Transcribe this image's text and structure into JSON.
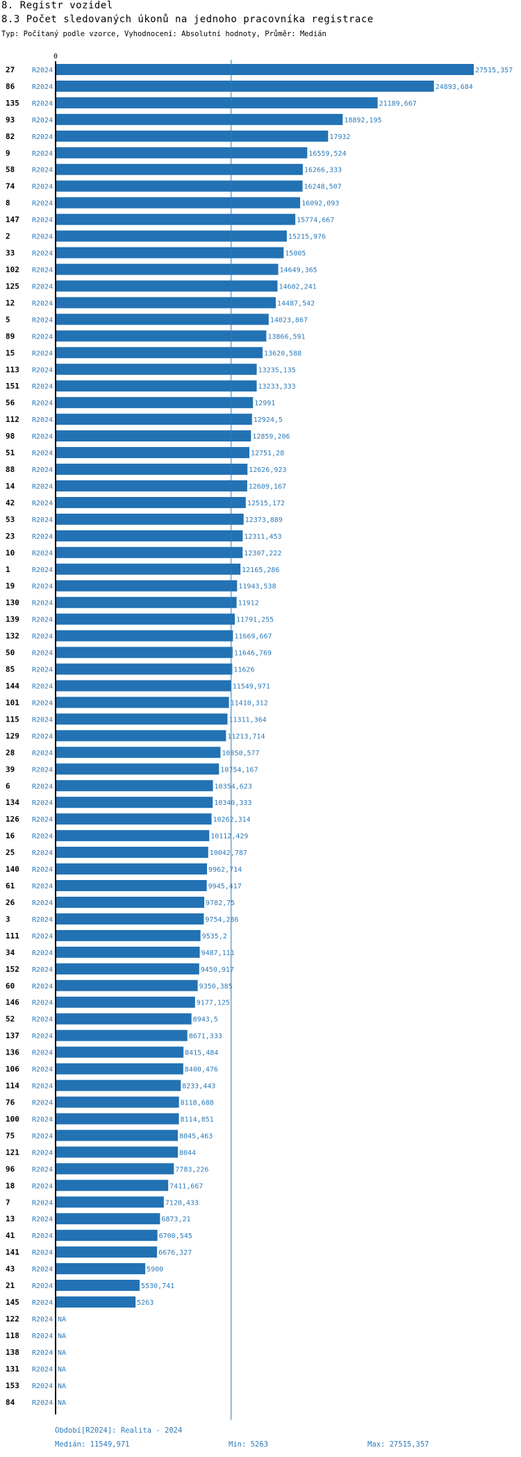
{
  "header": {
    "section": "8. Registr vozidel",
    "title": "8.3 Počet sledovaných úkonů na jednoho pracovníka registrace",
    "subtitle": "Typ: Počítaný podle vzorce, Vyhodnocení: Absolutní hodnoty, Průměr: Medián"
  },
  "footer": {
    "period": "Období[R2024]: Realita - 2024",
    "median": "Medián: 11549,971",
    "min": "Min: 5263",
    "max": "Max: 27515,357"
  },
  "colors": {
    "bar": "#2272b4",
    "label": "#2d7ab8",
    "axis": "#000000",
    "median_line": "#2d7ab8"
  },
  "chart_data": {
    "type": "bar",
    "orientation": "horizontal",
    "xlim": [
      0,
      27515.357
    ],
    "x_tick_labels": [
      "0"
    ],
    "median": 11549.971,
    "median_line": true,
    "series_label": "R2024",
    "rows": [
      {
        "id": "27",
        "series": "R2024",
        "value": 27515.357,
        "label": "27515,357"
      },
      {
        "id": "86",
        "series": "R2024",
        "value": 24893.684,
        "label": "24893,684"
      },
      {
        "id": "135",
        "series": "R2024",
        "value": 21189.667,
        "label": "21189,667"
      },
      {
        "id": "93",
        "series": "R2024",
        "value": 18892.195,
        "label": "18892,195"
      },
      {
        "id": "82",
        "series": "R2024",
        "value": 17932,
        "label": "17932"
      },
      {
        "id": "9",
        "series": "R2024",
        "value": 16559.524,
        "label": "16559,524"
      },
      {
        "id": "58",
        "series": "R2024",
        "value": 16266.333,
        "label": "16266,333"
      },
      {
        "id": "74",
        "series": "R2024",
        "value": 16248.507,
        "label": "16248,507"
      },
      {
        "id": "8",
        "series": "R2024",
        "value": 16092.093,
        "label": "16092,093"
      },
      {
        "id": "147",
        "series": "R2024",
        "value": 15774.667,
        "label": "15774,667"
      },
      {
        "id": "2",
        "series": "R2024",
        "value": 15215.976,
        "label": "15215,976"
      },
      {
        "id": "33",
        "series": "R2024",
        "value": 15005,
        "label": "15005"
      },
      {
        "id": "102",
        "series": "R2024",
        "value": 14649.365,
        "label": "14649,365"
      },
      {
        "id": "125",
        "series": "R2024",
        "value": 14602.241,
        "label": "14602,241"
      },
      {
        "id": "12",
        "series": "R2024",
        "value": 14487.542,
        "label": "14487,542"
      },
      {
        "id": "5",
        "series": "R2024",
        "value": 14023.867,
        "label": "14023,867"
      },
      {
        "id": "89",
        "series": "R2024",
        "value": 13866.591,
        "label": "13866,591"
      },
      {
        "id": "15",
        "series": "R2024",
        "value": 13620.588,
        "label": "13620,588"
      },
      {
        "id": "113",
        "series": "R2024",
        "value": 13235.135,
        "label": "13235,135"
      },
      {
        "id": "151",
        "series": "R2024",
        "value": 13233.333,
        "label": "13233,333"
      },
      {
        "id": "56",
        "series": "R2024",
        "value": 12991,
        "label": "12991"
      },
      {
        "id": "112",
        "series": "R2024",
        "value": 12924.5,
        "label": "12924,5"
      },
      {
        "id": "98",
        "series": "R2024",
        "value": 12859.206,
        "label": "12859,206"
      },
      {
        "id": "51",
        "series": "R2024",
        "value": 12751.28,
        "label": "12751,28"
      },
      {
        "id": "88",
        "series": "R2024",
        "value": 12626.923,
        "label": "12626,923"
      },
      {
        "id": "14",
        "series": "R2024",
        "value": 12609.167,
        "label": "12609,167"
      },
      {
        "id": "42",
        "series": "R2024",
        "value": 12515.172,
        "label": "12515,172"
      },
      {
        "id": "53",
        "series": "R2024",
        "value": 12373.889,
        "label": "12373,889"
      },
      {
        "id": "23",
        "series": "R2024",
        "value": 12311.453,
        "label": "12311,453"
      },
      {
        "id": "10",
        "series": "R2024",
        "value": 12307.222,
        "label": "12307,222"
      },
      {
        "id": "1",
        "series": "R2024",
        "value": 12165.286,
        "label": "12165,286"
      },
      {
        "id": "19",
        "series": "R2024",
        "value": 11943.538,
        "label": "11943,538"
      },
      {
        "id": "130",
        "series": "R2024",
        "value": 11912,
        "label": "11912"
      },
      {
        "id": "139",
        "series": "R2024",
        "value": 11791.255,
        "label": "11791,255"
      },
      {
        "id": "132",
        "series": "R2024",
        "value": 11669.667,
        "label": "11669,667"
      },
      {
        "id": "50",
        "series": "R2024",
        "value": 11646.769,
        "label": "11646,769"
      },
      {
        "id": "85",
        "series": "R2024",
        "value": 11626,
        "label": "11626"
      },
      {
        "id": "144",
        "series": "R2024",
        "value": 11549.971,
        "label": "11549,971"
      },
      {
        "id": "101",
        "series": "R2024",
        "value": 11410.312,
        "label": "11410,312"
      },
      {
        "id": "115",
        "series": "R2024",
        "value": 11311.364,
        "label": "11311,364"
      },
      {
        "id": "129",
        "series": "R2024",
        "value": 11213.714,
        "label": "11213,714"
      },
      {
        "id": "28",
        "series": "R2024",
        "value": 10850.577,
        "label": "10850,577"
      },
      {
        "id": "39",
        "series": "R2024",
        "value": 10754.167,
        "label": "10754,167"
      },
      {
        "id": "6",
        "series": "R2024",
        "value": 10354.623,
        "label": "10354,623"
      },
      {
        "id": "134",
        "series": "R2024",
        "value": 10340.333,
        "label": "10340,333"
      },
      {
        "id": "126",
        "series": "R2024",
        "value": 10262.314,
        "label": "10262,314"
      },
      {
        "id": "16",
        "series": "R2024",
        "value": 10112.429,
        "label": "10112,429"
      },
      {
        "id": "25",
        "series": "R2024",
        "value": 10042.787,
        "label": "10042,787"
      },
      {
        "id": "140",
        "series": "R2024",
        "value": 9962.714,
        "label": "9962,714"
      },
      {
        "id": "61",
        "series": "R2024",
        "value": 9945.417,
        "label": "9945,417"
      },
      {
        "id": "26",
        "series": "R2024",
        "value": 9782.75,
        "label": "9782,75"
      },
      {
        "id": "3",
        "series": "R2024",
        "value": 9754.286,
        "label": "9754,286"
      },
      {
        "id": "111",
        "series": "R2024",
        "value": 9535.2,
        "label": "9535,2"
      },
      {
        "id": "34",
        "series": "R2024",
        "value": 9487.111,
        "label": "9487,111"
      },
      {
        "id": "152",
        "series": "R2024",
        "value": 9450.917,
        "label": "9450,917"
      },
      {
        "id": "60",
        "series": "R2024",
        "value": 9350.385,
        "label": "9350,385"
      },
      {
        "id": "146",
        "series": "R2024",
        "value": 9177.125,
        "label": "9177,125"
      },
      {
        "id": "52",
        "series": "R2024",
        "value": 8943.5,
        "label": "8943,5"
      },
      {
        "id": "137",
        "series": "R2024",
        "value": 8671.333,
        "label": "8671,333"
      },
      {
        "id": "136",
        "series": "R2024",
        "value": 8415.484,
        "label": "8415,484"
      },
      {
        "id": "106",
        "series": "R2024",
        "value": 8400.476,
        "label": "8400,476"
      },
      {
        "id": "114",
        "series": "R2024",
        "value": 8233.443,
        "label": "8233,443"
      },
      {
        "id": "76",
        "series": "R2024",
        "value": 8118.688,
        "label": "8118,688"
      },
      {
        "id": "100",
        "series": "R2024",
        "value": 8114.851,
        "label": "8114,851"
      },
      {
        "id": "75",
        "series": "R2024",
        "value": 8045.463,
        "label": "8045,463"
      },
      {
        "id": "121",
        "series": "R2024",
        "value": 8044,
        "label": "8044"
      },
      {
        "id": "96",
        "series": "R2024",
        "value": 7783.226,
        "label": "7783,226"
      },
      {
        "id": "18",
        "series": "R2024",
        "value": 7411.667,
        "label": "7411,667"
      },
      {
        "id": "7",
        "series": "R2024",
        "value": 7120.433,
        "label": "7120,433"
      },
      {
        "id": "13",
        "series": "R2024",
        "value": 6873.21,
        "label": "6873,21"
      },
      {
        "id": "41",
        "series": "R2024",
        "value": 6700.545,
        "label": "6700,545"
      },
      {
        "id": "141",
        "series": "R2024",
        "value": 6676.327,
        "label": "6676,327"
      },
      {
        "id": "43",
        "series": "R2024",
        "value": 5900,
        "label": "5900"
      },
      {
        "id": "21",
        "series": "R2024",
        "value": 5530.741,
        "label": "5530,741"
      },
      {
        "id": "145",
        "series": "R2024",
        "value": 5263,
        "label": "5263"
      },
      {
        "id": "122",
        "series": "R2024",
        "value": null,
        "label": "NA"
      },
      {
        "id": "118",
        "series": "R2024",
        "value": null,
        "label": "NA"
      },
      {
        "id": "138",
        "series": "R2024",
        "value": null,
        "label": "NA"
      },
      {
        "id": "131",
        "series": "R2024",
        "value": null,
        "label": "NA"
      },
      {
        "id": "153",
        "series": "R2024",
        "value": null,
        "label": "NA"
      },
      {
        "id": "84",
        "series": "R2024",
        "value": null,
        "label": "NA"
      }
    ]
  }
}
